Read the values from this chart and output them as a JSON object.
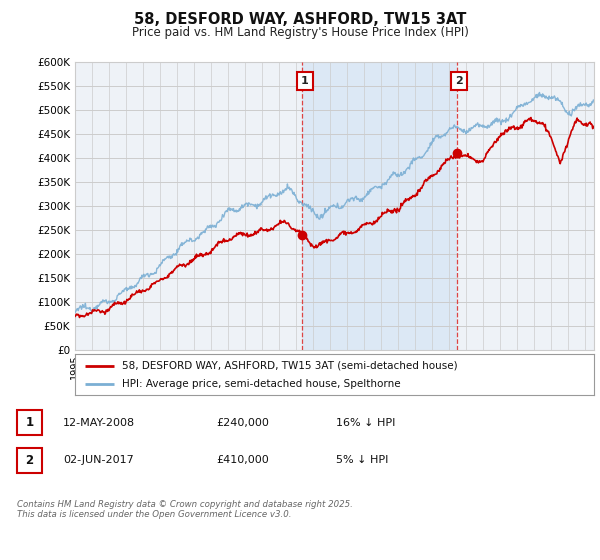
{
  "title": "58, DESFORD WAY, ASHFORD, TW15 3AT",
  "subtitle": "Price paid vs. HM Land Registry's House Price Index (HPI)",
  "ylabel_ticks": [
    "£0",
    "£50K",
    "£100K",
    "£150K",
    "£200K",
    "£250K",
    "£300K",
    "£350K",
    "£400K",
    "£450K",
    "£500K",
    "£550K",
    "£600K"
  ],
  "ylim": [
    0,
    600000
  ],
  "xlim_start": 1995.0,
  "xlim_end": 2025.5,
  "grid_color": "#cccccc",
  "hpi_color": "#7bafd4",
  "price_color": "#cc0000",
  "background_color": "#ffffff",
  "plot_bg_color": "#eef2f7",
  "shade_color": "#dce8f5",
  "sale1_date": 2008.36,
  "sale1_price": 240000,
  "sale2_date": 2017.42,
  "sale2_price": 410000,
  "annotation1_label": "1",
  "annotation2_label": "2",
  "legend_line1": "58, DESFORD WAY, ASHFORD, TW15 3AT (semi-detached house)",
  "legend_line2": "HPI: Average price, semi-detached house, Spelthorne",
  "table_row1": [
    "1",
    "12-MAY-2008",
    "£240,000",
    "16% ↓ HPI"
  ],
  "table_row2": [
    "2",
    "02-JUN-2017",
    "£410,000",
    "5% ↓ HPI"
  ],
  "footnote": "Contains HM Land Registry data © Crown copyright and database right 2025.\nThis data is licensed under the Open Government Licence v3.0.",
  "vline_color": "#dd4444"
}
